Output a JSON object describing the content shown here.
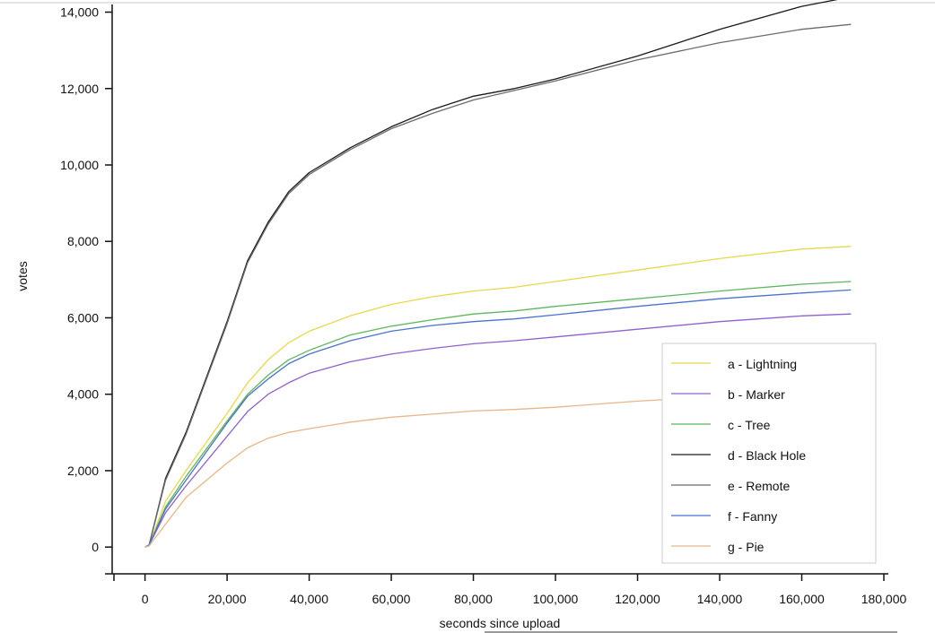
{
  "chart_data": {
    "type": "line",
    "xlabel": "seconds since upload",
    "ylabel": "votes",
    "xlim": [
      -8000,
      180000
    ],
    "ylim": [
      -700,
      14200
    ],
    "x_ticks": [
      0,
      20000,
      40000,
      60000,
      80000,
      100000,
      120000,
      140000,
      160000,
      180000
    ],
    "x_tick_labels": [
      "0",
      "20,000",
      "40,000",
      "60,000",
      "80,000",
      "100,000",
      "120,000",
      "140,000",
      "160,000",
      "180,000"
    ],
    "y_ticks": [
      0,
      2000,
      4000,
      6000,
      8000,
      10000,
      12000,
      14000
    ],
    "y_tick_labels": [
      "0",
      "2,000",
      "4,000",
      "6,000",
      "8,000",
      "10,000",
      "12,000",
      "14,000"
    ],
    "grid": false,
    "legend_position": "bottom-right",
    "x": [
      0,
      1000,
      5000,
      10000,
      20000,
      25000,
      30000,
      35000,
      40000,
      50000,
      60000,
      70000,
      80000,
      90000,
      100000,
      120000,
      140000,
      160000,
      172000
    ],
    "series": [
      {
        "name": "a - Lightning",
        "color": "#e8d84a",
        "values": [
          0,
          50,
          1200,
          2000,
          3500,
          4300,
          4900,
          5350,
          5650,
          6050,
          6350,
          6550,
          6700,
          6800,
          6950,
          7250,
          7550,
          7800,
          7870
        ]
      },
      {
        "name": "b - Marker",
        "color": "#9060d0",
        "values": [
          0,
          50,
          900,
          1600,
          2900,
          3550,
          4000,
          4300,
          4550,
          4850,
          5050,
          5200,
          5320,
          5400,
          5500,
          5700,
          5900,
          6050,
          6100
        ]
      },
      {
        "name": "c - Tree",
        "color": "#5cb85c",
        "values": [
          0,
          50,
          1050,
          1850,
          3300,
          4000,
          4500,
          4900,
          5150,
          5550,
          5780,
          5950,
          6100,
          6180,
          6300,
          6500,
          6700,
          6880,
          6950
        ]
      },
      {
        "name": "d - Black Hole",
        "color": "#1a1a1a",
        "values": [
          0,
          50,
          1800,
          3000,
          5900,
          7500,
          8500,
          9300,
          9800,
          10450,
          11000,
          11450,
          11800,
          12000,
          12250,
          12850,
          13550,
          14150,
          14400
        ]
      },
      {
        "name": "e - Remote",
        "color": "#6b6b6b",
        "values": [
          0,
          50,
          1750,
          2950,
          5850,
          7450,
          8450,
          9250,
          9750,
          10400,
          10950,
          11350,
          11700,
          11950,
          12200,
          12750,
          13200,
          13550,
          13680
        ]
      },
      {
        "name": "f - Fanny",
        "color": "#4a72d0",
        "values": [
          0,
          50,
          1000,
          1750,
          3250,
          3950,
          4400,
          4800,
          5050,
          5400,
          5650,
          5800,
          5900,
          5970,
          6080,
          6300,
          6500,
          6650,
          6730
        ]
      },
      {
        "name": "g - Pie",
        "color": "#e8b688",
        "values": [
          0,
          30,
          600,
          1300,
          2200,
          2600,
          2850,
          3000,
          3100,
          3270,
          3400,
          3480,
          3560,
          3600,
          3660,
          3820,
          3940,
          4040,
          4080
        ]
      }
    ]
  }
}
